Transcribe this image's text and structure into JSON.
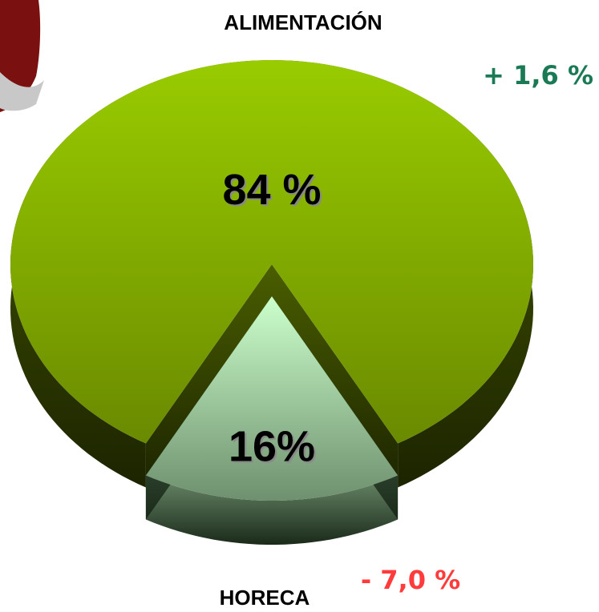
{
  "chart_data": {
    "type": "pie",
    "categories": [
      "ALIMENTACIÓN",
      "HORECA"
    ],
    "values": [
      84,
      16
    ],
    "value_labels": [
      "84  %",
      "16%"
    ],
    "colors": [
      "#99cc00",
      "#ccffcc"
    ],
    "annotations": [
      {
        "text": "+ 1,6 %",
        "color": "#1a7a55"
      },
      {
        "text": "- 7,0 %",
        "color": "#ff3b3b"
      }
    ]
  }
}
